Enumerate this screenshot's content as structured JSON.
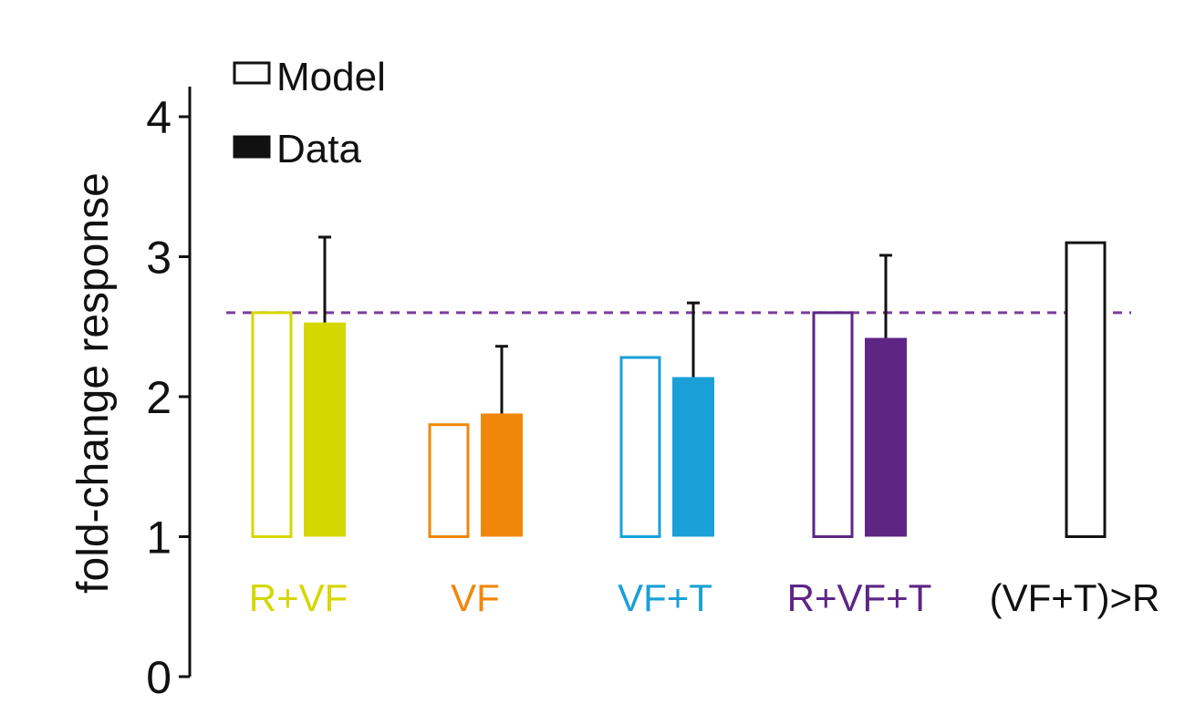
{
  "chart_data": {
    "type": "bar",
    "ylabel": "fold-change response",
    "ylim": [
      0,
      4
    ],
    "yticks": [
      0,
      1,
      2,
      3,
      4
    ],
    "baseline": 1,
    "reference_line": {
      "y": 2.6,
      "style": "dashed",
      "color": "#7a3d9e"
    },
    "categories": [
      "R+VF",
      "VF",
      "VF+T",
      "R+VF+T",
      "(VF+T)>R"
    ],
    "category_colors": [
      "#d6d600",
      "#f0870a",
      "#1aa0d8",
      "#5e2585",
      "#111111"
    ],
    "legend": {
      "position": "top-left",
      "items": [
        {
          "label": "Model",
          "style": "outline"
        },
        {
          "label": "Data",
          "style": "filled"
        }
      ]
    },
    "series": [
      {
        "name": "Model",
        "style": "outline",
        "values": [
          2.6,
          1.8,
          2.28,
          2.6,
          3.1
        ]
      },
      {
        "name": "Data",
        "style": "filled",
        "values": [
          2.53,
          1.88,
          2.14,
          2.42,
          null
        ],
        "error_upper": [
          3.14,
          2.36,
          2.67,
          3.01,
          null
        ]
      }
    ]
  }
}
